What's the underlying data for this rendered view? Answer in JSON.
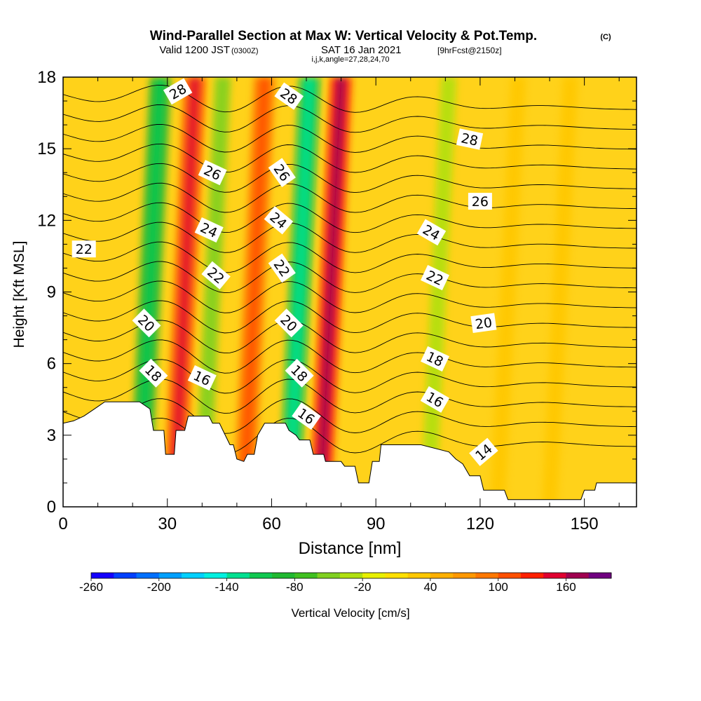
{
  "title": {
    "main": "Wind-Parallel Section at Max W: Vertical Velocity & Pot.Temp.",
    "copyright": "(C)",
    "valid_prefix": "Valid 1200 JST",
    "valid_utc": "(0300Z)",
    "valid_date": "SAT 16 Jan 2021",
    "forecast": "[9hrFcst@2150z]",
    "indices": "i,j,k,angle=27,28,24,70"
  },
  "chart_data": {
    "type": "heatmap",
    "xlabel": "Distance [nm]",
    "ylabel": "Height [Kft MSL]",
    "xlim": [
      0,
      165
    ],
    "ylim": [
      0,
      18
    ],
    "x_ticks": [
      "0",
      "30",
      "60",
      "90",
      "120",
      "150"
    ],
    "y_ticks": [
      "0",
      "3",
      "6",
      "9",
      "12",
      "15",
      "18"
    ],
    "colorbar": {
      "label": "Vertical Velocity [cm/s]",
      "tick_labels": [
        "-260",
        "-200",
        "-140",
        "-80",
        "-20",
        "40",
        "100",
        "160"
      ],
      "levels": [
        -260,
        -240,
        -220,
        -200,
        -180,
        -160,
        -140,
        -120,
        -100,
        -80,
        -60,
        -40,
        -20,
        0,
        20,
        40,
        60,
        80,
        100,
        120,
        140,
        160,
        180
      ],
      "colors": [
        "#1400ff",
        "#0040ff",
        "#0070ff",
        "#00a0ff",
        "#00d0ff",
        "#00f0e0",
        "#00e090",
        "#10c850",
        "#20b830",
        "#40c020",
        "#80d020",
        "#b0e010",
        "#e8f000",
        "#ffe000",
        "#ffc800",
        "#ffb000",
        "#ff9800",
        "#ff7800",
        "#ff5000",
        "#ff2000",
        "#e00030",
        "#a00050",
        "#700080"
      ]
    },
    "wave_bands_x_nm": [
      {
        "x": 25,
        "w": -85
      },
      {
        "x": 35,
        "w": 110
      },
      {
        "x": 43,
        "w": -60
      },
      {
        "x": 55,
        "w": 80
      },
      {
        "x": 68,
        "w": -110
      },
      {
        "x": 77,
        "w": 130
      },
      {
        "x": 108,
        "w": -40
      },
      {
        "x": 128,
        "w": 25
      },
      {
        "x": 143,
        "w": 20
      }
    ],
    "theta_isentropes_degC": [
      12,
      13,
      14,
      15,
      16,
      17,
      18,
      19,
      20,
      21,
      22,
      23,
      24,
      25,
      26,
      27,
      28,
      29
    ],
    "contour_labels": [
      {
        "text": "28",
        "x": 33,
        "y": 17.4,
        "angle": -30
      },
      {
        "text": "28",
        "x": 65,
        "y": 17.2,
        "angle": 35
      },
      {
        "text": "28",
        "x": 117,
        "y": 15.4,
        "angle": 12
      },
      {
        "text": "26",
        "x": 43,
        "y": 14.0,
        "angle": 25
      },
      {
        "text": "26",
        "x": 63,
        "y": 14.0,
        "angle": 55
      },
      {
        "text": "26",
        "x": 120,
        "y": 12.8,
        "angle": 0
      },
      {
        "text": "24",
        "x": 42,
        "y": 11.6,
        "angle": 25
      },
      {
        "text": "24",
        "x": 62,
        "y": 12.0,
        "angle": 40
      },
      {
        "text": "24",
        "x": 106,
        "y": 11.5,
        "angle": 30
      },
      {
        "text": "22",
        "x": 6,
        "y": 10.8,
        "angle": 0
      },
      {
        "text": "22",
        "x": 44,
        "y": 9.7,
        "angle": 40
      },
      {
        "text": "22",
        "x": 63,
        "y": 10.0,
        "angle": 55
      },
      {
        "text": "22",
        "x": 107,
        "y": 9.6,
        "angle": 25
      },
      {
        "text": "20",
        "x": 24,
        "y": 7.7,
        "angle": 45
      },
      {
        "text": "20",
        "x": 65,
        "y": 7.7,
        "angle": 45
      },
      {
        "text": "20",
        "x": 121,
        "y": 7.7,
        "angle": -8
      },
      {
        "text": "18",
        "x": 26,
        "y": 5.6,
        "angle": 45
      },
      {
        "text": "18",
        "x": 68,
        "y": 5.6,
        "angle": 45
      },
      {
        "text": "18",
        "x": 107,
        "y": 6.2,
        "angle": 25
      },
      {
        "text": "16",
        "x": 40,
        "y": 5.4,
        "angle": 25
      },
      {
        "text": "16",
        "x": 70,
        "y": 3.8,
        "angle": 35
      },
      {
        "text": "16",
        "x": 107,
        "y": 4.5,
        "angle": 30
      },
      {
        "text": "14",
        "x": 121,
        "y": 2.3,
        "angle": -40
      }
    ],
    "terrain_kft": [
      [
        0,
        3.5
      ],
      [
        3,
        3.6
      ],
      [
        6,
        3.8
      ],
      [
        9,
        4.1
      ],
      [
        12,
        4.4
      ],
      [
        22,
        4.4
      ],
      [
        25,
        4.1
      ],
      [
        26,
        3.2
      ],
      [
        29,
        3.2
      ],
      [
        29.5,
        2.2
      ],
      [
        32,
        2.2
      ],
      [
        32.5,
        3.2
      ],
      [
        35,
        3.2
      ],
      [
        36,
        3.8
      ],
      [
        42,
        3.8
      ],
      [
        43,
        3.5
      ],
      [
        45,
        3.5
      ],
      [
        46,
        3.2
      ],
      [
        48,
        2.6
      ],
      [
        49,
        2.6
      ],
      [
        50,
        2.0
      ],
      [
        52,
        1.9
      ],
      [
        53,
        2.2
      ],
      [
        55,
        2.2
      ],
      [
        56,
        3.0
      ],
      [
        58,
        3.5
      ],
      [
        64,
        3.5
      ],
      [
        65,
        3.2
      ],
      [
        67,
        3.0
      ],
      [
        68,
        2.8
      ],
      [
        71,
        2.8
      ],
      [
        72,
        2.2
      ],
      [
        75,
        2.2
      ],
      [
        75.5,
        1.9
      ],
      [
        80,
        1.9
      ],
      [
        81,
        1.7
      ],
      [
        84,
        1.7
      ],
      [
        85,
        1.0
      ],
      [
        88,
        1.0
      ],
      [
        89,
        1.9
      ],
      [
        91,
        1.9
      ],
      [
        91.5,
        2.6
      ],
      [
        103,
        2.6
      ],
      [
        111,
        2.3
      ],
      [
        113,
        2.0
      ],
      [
        115,
        1.8
      ],
      [
        117,
        1.3
      ],
      [
        120,
        1.3
      ],
      [
        121,
        0.7
      ],
      [
        127,
        0.7
      ],
      [
        128,
        0.3
      ],
      [
        149,
        0.3
      ],
      [
        150,
        0.7
      ],
      [
        153,
        0.7
      ],
      [
        153.5,
        1.0
      ],
      [
        165,
        1.0
      ]
    ]
  }
}
